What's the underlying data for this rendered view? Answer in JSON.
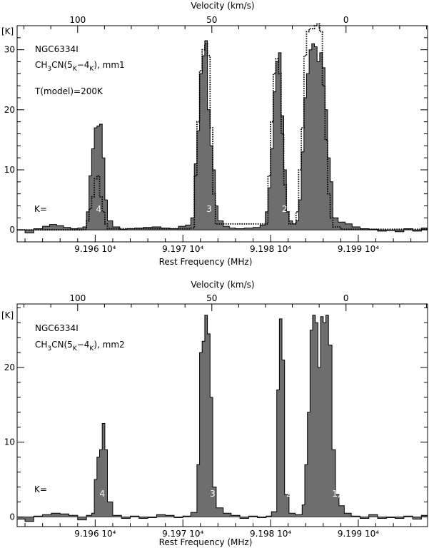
{
  "chart_data": [
    {
      "type": "area",
      "title": "NGC6334I",
      "subtitle_parts": [
        "CH",
        "3",
        "CN(5",
        "K",
        "−4",
        "K",
        "), mm1"
      ],
      "model_label": "T(model)=200K",
      "k_label": "K=",
      "x_label": "Rest Frequency (MHz)",
      "x2_label": "Velocity (km/s)",
      "y_unit_label": "[K]",
      "freq_ticks": [
        {
          "value": 91960,
          "label": "9.196 10⁴"
        },
        {
          "value": 91970,
          "label": "9.197 10⁴"
        },
        {
          "value": 91980,
          "label": "9.198 10⁴"
        },
        {
          "value": 91990,
          "label": "9.199 10⁴"
        }
      ],
      "velocity_ticks": [
        {
          "freq": 91958.0,
          "label": "100"
        },
        {
          "freq": 91973.3,
          "label": "50"
        },
        {
          "freq": 91988.6,
          "label": "0"
        }
      ],
      "xlim": [
        91951.1,
        91997.9
      ],
      "ylim": [
        -2,
        34
      ],
      "y_ticks": [
        0,
        10,
        20,
        30
      ],
      "peaks": [
        {
          "label": "4",
          "freq": 91960.4
        },
        {
          "label": "3",
          "freq": 91973.0
        },
        {
          "label": "2",
          "freq": 91981.6
        },
        {
          "label": "1,0",
          "freq": 91987.8
        }
      ],
      "series": [
        {
          "kind": "observed-histogram",
          "points": [
            [
              91951.1,
              0
            ],
            [
              91952.0,
              -0.5
            ],
            [
              91953,
              0.2
            ],
            [
              91954,
              0.6
            ],
            [
              91954.8,
              0.9
            ],
            [
              91955.6,
              0.7
            ],
            [
              91956.4,
              0.4
            ],
            [
              91957.2,
              0.2
            ],
            [
              91958,
              0.3
            ],
            [
              91958.6,
              0.5
            ],
            [
              91959.0,
              3
            ],
            [
              91959.3,
              9
            ],
            [
              91959.6,
              13.5
            ],
            [
              91959.9,
              17
            ],
            [
              91960.2,
              17.3
            ],
            [
              91960.5,
              17.6
            ],
            [
              91960.8,
              12
            ],
            [
              91961.1,
              5
            ],
            [
              91961.4,
              1.5
            ],
            [
              91962,
              0.5
            ],
            [
              91962.8,
              0.1
            ],
            [
              91963.6,
              0.2
            ],
            [
              91964.5,
              0.3
            ],
            [
              91965.5,
              0.4
            ],
            [
              91966.5,
              0.5
            ],
            [
              91967.5,
              0.3
            ],
            [
              91968.5,
              0.2
            ],
            [
              91969.5,
              0.6
            ],
            [
              91970.3,
              0.8
            ],
            [
              91970.9,
              2
            ],
            [
              91971.3,
              11
            ],
            [
              91971.6,
              16.5
            ],
            [
              91971.9,
              26
            ],
            [
              91972.2,
              29
            ],
            [
              91972.5,
              31.5
            ],
            [
              91972.8,
              20
            ],
            [
              91973.1,
              14
            ],
            [
              91973.4,
              10
            ],
            [
              91973.7,
              4
            ],
            [
              91974.0,
              1.5
            ],
            [
              91974.6,
              0.6
            ],
            [
              91975.3,
              0.3
            ],
            [
              91976,
              0.2
            ],
            [
              91977,
              0.3
            ],
            [
              91978,
              0.4
            ],
            [
              91978.8,
              0.8
            ],
            [
              91979.4,
              3
            ],
            [
              91979.7,
              7
            ],
            [
              91980.0,
              13.5
            ],
            [
              91980.3,
              23
            ],
            [
              91980.6,
              28
            ],
            [
              91980.9,
              29.5
            ],
            [
              91981.2,
              19
            ],
            [
              91981.5,
              10
            ],
            [
              91981.8,
              3
            ],
            [
              91982.1,
              1.5
            ],
            [
              91982.5,
              1
            ],
            [
              91982.9,
              1.5
            ],
            [
              91983.2,
              5
            ],
            [
              91983.5,
              13
            ],
            [
              91983.8,
              22
            ],
            [
              91984.1,
              26
            ],
            [
              91984.4,
              30
            ],
            [
              91984.7,
              31
            ],
            [
              91985.0,
              30.5
            ],
            [
              91985.3,
              28
            ],
            [
              91985.6,
              29.5
            ],
            [
              91985.9,
              27
            ],
            [
              91986.2,
              20
            ],
            [
              91986.5,
              12
            ],
            [
              91986.8,
              8
            ],
            [
              91987.1,
              2
            ],
            [
              91987.7,
              1.3
            ],
            [
              91988.5,
              1
            ],
            [
              91989.3,
              0.5
            ],
            [
              91990.2,
              0.2
            ],
            [
              91991.2,
              0.1
            ],
            [
              91992.2,
              -0.2
            ],
            [
              91993.2,
              -0.1
            ],
            [
              91994.2,
              -0.3
            ],
            [
              91995.2,
              0.2
            ],
            [
              91996.2,
              -0.2
            ],
            [
              91997.2,
              0.3
            ],
            [
              91997.9,
              0
            ]
          ]
        },
        {
          "kind": "model-dotted",
          "points": [
            [
              91951.1,
              0
            ],
            [
              91958.6,
              0.05
            ],
            [
              91959.0,
              1.5
            ],
            [
              91959.3,
              3.5
            ],
            [
              91959.6,
              5.5
            ],
            [
              91959.9,
              8.5
            ],
            [
              91960.2,
              9
            ],
            [
              91960.5,
              5.5
            ],
            [
              91960.8,
              3
            ],
            [
              91961.1,
              1
            ],
            [
              91961.4,
              0.2
            ],
            [
              91970.9,
              0.3
            ],
            [
              91971.3,
              9
            ],
            [
              91971.6,
              18
            ],
            [
              91971.9,
              26.5
            ],
            [
              91972.2,
              30
            ],
            [
              91972.5,
              31
            ],
            [
              91972.8,
              29
            ],
            [
              91973.1,
              17
            ],
            [
              91973.4,
              6
            ],
            [
              91973.7,
              1
            ],
            [
              91979.4,
              1
            ],
            [
              91979.7,
              9
            ],
            [
              91980.0,
              18
            ],
            [
              91980.3,
              26
            ],
            [
              91980.6,
              28.5
            ],
            [
              91980.9,
              26
            ],
            [
              91981.2,
              16
            ],
            [
              91981.5,
              7.5
            ],
            [
              91981.8,
              3
            ],
            [
              91982.1,
              1
            ],
            [
              91982.9,
              3
            ],
            [
              91983.2,
              10
            ],
            [
              91983.5,
              17
            ],
            [
              91983.8,
              29
            ],
            [
              91984.1,
              33
            ],
            [
              91984.4,
              33.5
            ],
            [
              91984.7,
              33.5
            ],
            [
              91985.0,
              34
            ],
            [
              91985.3,
              34.3
            ],
            [
              91985.6,
              33
            ],
            [
              91985.9,
              24
            ],
            [
              91986.2,
              15
            ],
            [
              91986.5,
              6
            ],
            [
              91986.8,
              2
            ],
            [
              91987.1,
              0.5
            ],
            [
              91988,
              0.1
            ],
            [
              91997.9,
              0
            ]
          ]
        }
      ]
    },
    {
      "type": "area",
      "title": "NGC6334I",
      "subtitle_parts": [
        "CH",
        "3",
        "CN(5",
        "K",
        "−4",
        "K",
        "), mm2"
      ],
      "k_label": "K=",
      "x_label": "Rest Frequency (MHz)",
      "x2_label": "Velocity (km/s)",
      "y_unit_label": "[K]",
      "freq_ticks": [
        {
          "value": 91960,
          "label": "9.196 10⁴"
        },
        {
          "value": 91970,
          "label": "9.197 10⁴"
        },
        {
          "value": 91980,
          "label": "9.198 10⁴"
        },
        {
          "value": 91990,
          "label": "9.199 10⁴"
        }
      ],
      "velocity_ticks": [
        {
          "freq": 91958.0,
          "label": "100"
        },
        {
          "freq": 91973.3,
          "label": "50"
        },
        {
          "freq": 91988.6,
          "label": "0"
        }
      ],
      "xlim": [
        91951.1,
        91997.9
      ],
      "ylim": [
        -1.3,
        28.5
      ],
      "y_ticks": [
        0,
        10,
        20
      ],
      "peaks": [
        {
          "label": "4",
          "freq": 91960.8
        },
        {
          "label": "3",
          "freq": 91973.4
        },
        {
          "label": "2",
          "freq": 91982.1
        },
        {
          "label": "1,0",
          "freq": 91987.8
        }
      ],
      "series": [
        {
          "kind": "observed-histogram",
          "points": [
            [
              91951.1,
              -0.3
            ],
            [
              91952.0,
              -0.6
            ],
            [
              91953,
              0.1
            ],
            [
              91954,
              0.3
            ],
            [
              91955,
              0.5
            ],
            [
              91956,
              0.4
            ],
            [
              91957,
              0.2
            ],
            [
              91958,
              -0.4
            ],
            [
              91959,
              0.2
            ],
            [
              91959.6,
              0.5
            ],
            [
              91959.9,
              5
            ],
            [
              91960.2,
              8
            ],
            [
              91960.5,
              9
            ],
            [
              91960.8,
              12.5
            ],
            [
              91961.1,
              9
            ],
            [
              91961.4,
              2
            ],
            [
              91962,
              0.2
            ],
            [
              91963,
              -0.2
            ],
            [
              91964,
              0.1
            ],
            [
              91965,
              -0.2
            ],
            [
              91966,
              -0.1
            ],
            [
              91967,
              0.3
            ],
            [
              91968,
              0.2
            ],
            [
              91969,
              -0.1
            ],
            [
              91970,
              0.1
            ],
            [
              91970.9,
              0.6
            ],
            [
              91971.6,
              7
            ],
            [
              91971.9,
              22
            ],
            [
              91972.2,
              23.5
            ],
            [
              91972.5,
              27
            ],
            [
              91972.8,
              24.5
            ],
            [
              91973.1,
              16
            ],
            [
              91973.4,
              4
            ],
            [
              91973.8,
              1.2
            ],
            [
              91974.6,
              0.5
            ],
            [
              91975.5,
              0.2
            ],
            [
              91976.5,
              -0.2
            ],
            [
              91977.5,
              0.1
            ],
            [
              91978.5,
              -0.1
            ],
            [
              91979.5,
              0.1
            ],
            [
              91980.1,
              0.7
            ],
            [
              91980.7,
              17
            ],
            [
              91981.0,
              26.5
            ],
            [
              91981.3,
              21
            ],
            [
              91981.6,
              3
            ],
            [
              91982.1,
              0.5
            ],
            [
              91982.8,
              0.3
            ],
            [
              91983.6,
              1.6
            ],
            [
              91983.9,
              7
            ],
            [
              91984.2,
              14
            ],
            [
              91984.5,
              25
            ],
            [
              91984.8,
              27
            ],
            [
              91985.1,
              26
            ],
            [
              91985.4,
              20
            ],
            [
              91985.7,
              26.8
            ],
            [
              91986.0,
              26
            ],
            [
              91986.3,
              27
            ],
            [
              91986.6,
              23
            ],
            [
              91987.0,
              9
            ],
            [
              91987.4,
              3
            ],
            [
              91987.8,
              1.5
            ],
            [
              91988.4,
              0.5
            ],
            [
              91989.2,
              0.1
            ],
            [
              91990.2,
              -0.2
            ],
            [
              91991.2,
              0.3
            ],
            [
              91992.2,
              -0.2
            ],
            [
              91993.2,
              -0.1
            ],
            [
              91994.2,
              -0.2
            ],
            [
              91995.2,
              0.1
            ],
            [
              91996.2,
              -0.3
            ],
            [
              91997.2,
              0.2
            ],
            [
              91997.9,
              0
            ]
          ]
        }
      ]
    }
  ]
}
